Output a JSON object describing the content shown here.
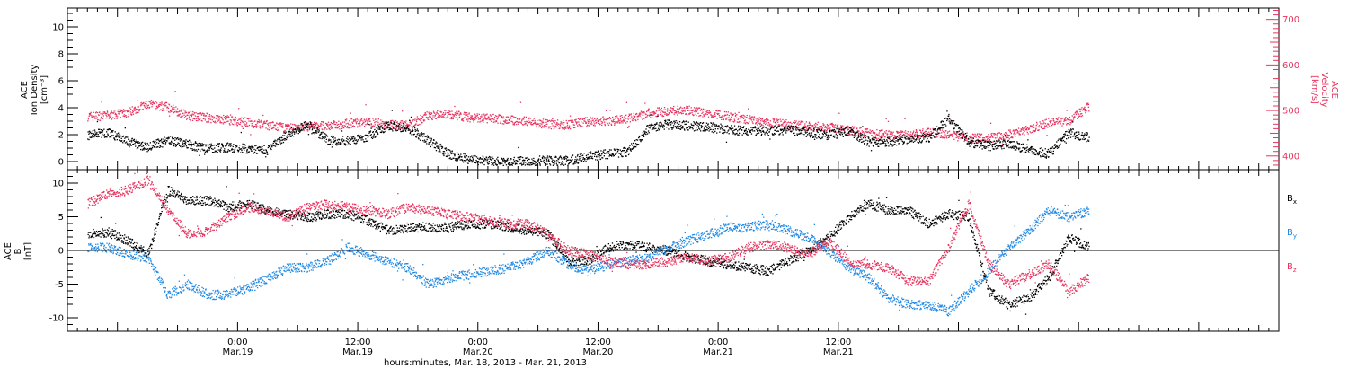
{
  "chart_data": [
    {
      "type": "scatter",
      "panel": "top",
      "left_axis": {
        "label_lines": [
          "ACE",
          "Ion Density",
          "[cm⁻³]"
        ],
        "ylim": [
          -0.6,
          11.4
        ],
        "ticks": [
          0,
          2,
          4,
          6,
          8,
          10
        ],
        "tick_labels": [
          "0",
          "2",
          "4",
          "6",
          "8",
          "10"
        ]
      },
      "right_axis": {
        "label_lines": [
          "ACE",
          "Velocity",
          "[km/s]"
        ],
        "ylim": [
          370,
          725
        ],
        "ticks": [
          400,
          500,
          600,
          700
        ],
        "tick_labels": [
          "400",
          "500",
          "600",
          "700"
        ],
        "color": "#e8335e"
      },
      "series": [
        {
          "name": "Ion Density",
          "color": "#000000",
          "axis": "left",
          "x": [
            -15,
            -13,
            -11,
            -9,
            -7,
            -5,
            -3,
            -1,
            1,
            3,
            5,
            7,
            9,
            11,
            13,
            15,
            17,
            19,
            21,
            23,
            25,
            27,
            29,
            31,
            33,
            35,
            37,
            39,
            41,
            43,
            45,
            47,
            49,
            51,
            53,
            55,
            57,
            59,
            61,
            63,
            65,
            67,
            69,
            71,
            73,
            75,
            77,
            79,
            81,
            83,
            85
          ],
          "y": [
            2.0,
            2.2,
            1.5,
            1.1,
            1.6,
            1.3,
            1.0,
            1.1,
            1.0,
            0.9,
            2.1,
            2.8,
            1.6,
            1.6,
            1.9,
            2.7,
            2.5,
            1.6,
            0.6,
            0.2,
            0.1,
            0.1,
            0.1,
            0.1,
            0.1,
            0.4,
            0.6,
            0.8,
            2.5,
            2.8,
            2.7,
            2.6,
            2.4,
            2.3,
            2.3,
            2.4,
            2.2,
            2.0,
            2.3,
            1.5,
            1.5,
            1.7,
            1.8,
            3.2,
            1.5,
            1.2,
            1.4,
            0.9,
            0.6,
            2.2,
            1.8
          ]
        },
        {
          "name": "Velocity",
          "color": "#e8335e",
          "axis": "right",
          "x": [
            -15,
            -13,
            -11,
            -9,
            -7,
            -5,
            -3,
            -1,
            1,
            3,
            5,
            7,
            9,
            11,
            13,
            15,
            17,
            19,
            21,
            23,
            25,
            27,
            29,
            31,
            33,
            35,
            37,
            39,
            41,
            43,
            45,
            47,
            49,
            51,
            53,
            55,
            57,
            59,
            61,
            63,
            65,
            67,
            69,
            71,
            73,
            75,
            77,
            79,
            81,
            83,
            85
          ],
          "y": [
            488,
            490,
            497,
            515,
            508,
            490,
            485,
            480,
            475,
            468,
            462,
            466,
            468,
            472,
            475,
            470,
            468,
            490,
            494,
            486,
            484,
            480,
            478,
            470,
            470,
            477,
            478,
            483,
            495,
            500,
            502,
            494,
            488,
            480,
            474,
            470,
            466,
            465,
            458,
            450,
            447,
            448,
            452,
            448,
            440,
            440,
            448,
            460,
            475,
            478,
            510
          ]
        }
      ]
    },
    {
      "type": "scatter",
      "panel": "bottom",
      "left_axis": {
        "label_lines": [
          "ACE",
          "B",
          "[nT]"
        ],
        "ylim": [
          -12,
          12
        ],
        "ticks": [
          -10,
          -5,
          0,
          5,
          10
        ],
        "tick_labels": [
          "-10",
          "-5",
          "0",
          "5",
          "10"
        ]
      },
      "zero_line": true,
      "legend": {
        "position": "right",
        "labels": [
          [
            "B",
            "x"
          ],
          [
            "B",
            "y"
          ],
          [
            "B",
            "z"
          ]
        ]
      },
      "series": [
        {
          "name": "Bx",
          "color": "#000000",
          "x": [
            -15,
            -13,
            -11,
            -9,
            -7,
            -5,
            -3,
            -1,
            1,
            3,
            5,
            7,
            9,
            11,
            13,
            15,
            17,
            19,
            21,
            23,
            25,
            27,
            29,
            31,
            33,
            35,
            37,
            39,
            41,
            43,
            45,
            47,
            49,
            51,
            53,
            55,
            57,
            59,
            61,
            63,
            65,
            67,
            69,
            71,
            73,
            75,
            77,
            79,
            81,
            83,
            85
          ],
          "y": [
            2.5,
            2.8,
            1.5,
            -0.5,
            9.0,
            7.5,
            7.5,
            6.5,
            7.0,
            6.0,
            5.5,
            5.0,
            5.5,
            5.5,
            4.5,
            3.0,
            3.5,
            3.5,
            3.5,
            4.0,
            4.0,
            3.5,
            3.0,
            2.5,
            -1.5,
            -1.5,
            0.5,
            1.0,
            0.5,
            0.0,
            -1.0,
            -1.5,
            -2.0,
            -2.5,
            -3.0,
            -1.5,
            0.0,
            2.0,
            5.0,
            7.0,
            6.0,
            6.0,
            4.0,
            5.5,
            5.0,
            -6.0,
            -8.0,
            -7.0,
            -4.0,
            2.0,
            0.5
          ]
        },
        {
          "name": "By",
          "color": "#1e88e5",
          "x": [
            -15,
            -13,
            -11,
            -9,
            -7,
            -5,
            -3,
            -1,
            1,
            3,
            5,
            7,
            9,
            11,
            13,
            15,
            17,
            19,
            21,
            23,
            25,
            27,
            29,
            31,
            33,
            35,
            37,
            39,
            41,
            43,
            45,
            47,
            49,
            51,
            53,
            55,
            57,
            59,
            61,
            63,
            65,
            67,
            69,
            71,
            73,
            75,
            77,
            79,
            81,
            83,
            85
          ],
          "y": [
            0.5,
            0.5,
            -0.5,
            -1.0,
            -6.5,
            -5.0,
            -6.5,
            -6.5,
            -5.5,
            -4.0,
            -2.5,
            -2.5,
            -1.5,
            0.5,
            -0.5,
            -1.5,
            -2.5,
            -5.0,
            -4.0,
            -3.5,
            -3.0,
            -2.5,
            -1.5,
            0.0,
            -2.0,
            -3.0,
            -2.0,
            -1.5,
            -1.0,
            0.5,
            1.5,
            2.5,
            3.5,
            3.5,
            4.0,
            3.0,
            2.0,
            0.0,
            -2.5,
            -4.0,
            -7.0,
            -8.0,
            -8.0,
            -9.0,
            -6.0,
            -3.0,
            0.5,
            3.0,
            6.0,
            5.0,
            6.0
          ]
        },
        {
          "name": "Bz",
          "color": "#e8335e",
          "x": [
            -15,
            -13,
            -11,
            -9,
            -7,
            -5,
            -3,
            -1,
            1,
            3,
            5,
            7,
            9,
            11,
            13,
            15,
            17,
            19,
            21,
            23,
            25,
            27,
            29,
            31,
            33,
            35,
            37,
            39,
            41,
            43,
            45,
            47,
            49,
            51,
            53,
            55,
            57,
            59,
            61,
            63,
            65,
            67,
            69,
            71,
            73,
            75,
            77,
            79,
            81,
            83,
            85
          ],
          "y": [
            7.0,
            8.5,
            9.0,
            10.5,
            6.0,
            2.5,
            3.0,
            5.0,
            6.5,
            6.0,
            5.0,
            6.5,
            7.0,
            6.5,
            6.0,
            5.5,
            6.5,
            6.0,
            5.5,
            5.0,
            4.5,
            4.0,
            4.0,
            2.5,
            0.0,
            -0.5,
            -1.5,
            -2.0,
            -2.0,
            -1.5,
            -1.0,
            -1.5,
            -1.0,
            0.5,
            1.0,
            0.5,
            -0.5,
            1.5,
            -1.5,
            -2.0,
            -2.5,
            -4.5,
            -4.5,
            0.5,
            7.0,
            -2.0,
            -5.0,
            -3.5,
            -2.0,
            -6.0,
            -4.0
          ]
        }
      ]
    }
  ],
  "time_axis": {
    "xlim": [
      -17,
      104
    ],
    "major_ticks": [
      0,
      12,
      24,
      36,
      48,
      60
    ],
    "tick_labels": [
      {
        "time": "0:00",
        "date": "Mar.19"
      },
      {
        "time": "12:00",
        "date": "Mar.19"
      },
      {
        "time": "0:00",
        "date": "Mar.20"
      },
      {
        "time": "12:00",
        "date": "Mar.20"
      },
      {
        "time": "0:00",
        "date": "Mar.21"
      },
      {
        "time": "12:00",
        "date": "Mar.21"
      }
    ],
    "title": "hours:minutes, Mar. 18, 2013 - Mar. 21, 2013"
  },
  "colors": {
    "black": "#000000",
    "blue": "#1e88e5",
    "pink": "#e8335e"
  }
}
